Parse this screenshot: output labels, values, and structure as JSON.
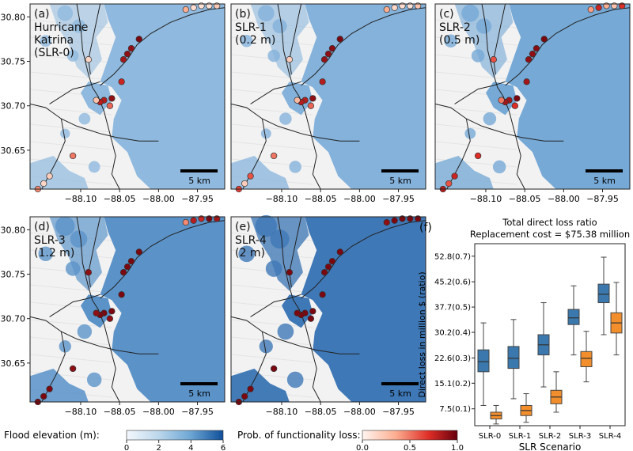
{
  "map_panels": [
    {
      "letter": "(a)",
      "title_lines": [
        "Hurricane",
        "Katrina",
        "(SLR-0)"
      ],
      "flood_color": "#8fb9de",
      "flood_scale": 1.0,
      "points_losses": [
        0.35,
        0.12,
        0.1,
        0.1,
        0.22,
        0.95,
        0.9,
        0.9,
        0.85,
        0.75,
        0.15,
        0.9,
        0.8,
        0.8,
        0.55,
        0.25,
        0.5,
        0.2,
        0.15,
        0.45
      ]
    },
    {
      "letter": "(b)",
      "title_lines": [
        "SLR-1",
        "(0.2 m)"
      ],
      "flood_color": "#84b2db",
      "flood_scale": 1.05,
      "points_losses": [
        0.35,
        0.15,
        0.12,
        0.1,
        0.25,
        0.95,
        0.92,
        0.9,
        0.88,
        0.8,
        0.2,
        0.9,
        0.8,
        0.8,
        0.55,
        0.3,
        0.5,
        0.6,
        0.2,
        0.65
      ]
    },
    {
      "letter": "(c)",
      "title_lines": [
        "SLR-2",
        "(0.5 m)"
      ],
      "flood_color": "#76a9d6",
      "flood_scale": 1.12,
      "points_losses": [
        0.4,
        0.75,
        0.35,
        0.25,
        0.7,
        0.95,
        0.92,
        0.9,
        0.9,
        0.85,
        0.6,
        0.95,
        0.85,
        0.85,
        0.7,
        0.5,
        0.7,
        0.75,
        0.6,
        0.8
      ]
    },
    {
      "letter": "(d)",
      "title_lines": [
        "SLR-3",
        "(1.2 m)"
      ],
      "flood_color": "#5b93c9",
      "flood_scale": 1.25,
      "points_losses": [
        0.45,
        0.8,
        0.75,
        0.95,
        0.85,
        0.95,
        0.95,
        0.95,
        0.95,
        0.95,
        0.9,
        0.95,
        0.95,
        0.95,
        0.9,
        0.9,
        0.9,
        0.95,
        0.95,
        0.95
      ]
    },
    {
      "letter": "(e)",
      "title_lines": [
        "SLR-4",
        "(2 m)"
      ],
      "flood_color": "#3f78b6",
      "flood_scale": 1.4,
      "points_losses": [
        0.9,
        0.95,
        0.95,
        0.95,
        0.95,
        0.95,
        0.95,
        0.95,
        0.95,
        0.95,
        0.95,
        0.95,
        0.95,
        0.95,
        0.95,
        0.95,
        0.95,
        0.95,
        0.95,
        0.95
      ]
    }
  ],
  "axes": {
    "x_ticks": [
      "−88.10",
      "−88.05",
      "−88.00",
      "−87.95"
    ],
    "y_ticks": [
      "30.80",
      "30.75",
      "30.70",
      "30.65"
    ]
  },
  "scalebar_label": "5 km",
  "colorbars": {
    "flood": {
      "label": "Flood elevation (m):",
      "ticks": [
        "0",
        "2",
        "4",
        "6"
      ]
    },
    "loss": {
      "label": "Prob. of functionality loss:",
      "ticks": [
        "0.0",
        "0.5",
        "1.0"
      ]
    }
  },
  "chart_data": {
    "type": "box",
    "panel_letter": "(f)",
    "title": "Total direct loss ratio",
    "subtitle": "Replacement cost = $75.38 million",
    "xlabel": "SLR Scenario",
    "ylabel": "Direct loss in million $ (ratio)",
    "categories": [
      "SLR-0",
      "SLR-1",
      "SLR-2",
      "SLR-3",
      "SLR-4"
    ],
    "y_ticks": [
      {
        "value": 7.5,
        "label": "7.5(0.1)"
      },
      {
        "value": 15.1,
        "label": "15.1(0.2)"
      },
      {
        "value": 22.6,
        "label": "22.6(0.3)"
      },
      {
        "value": 30.2,
        "label": "30.2(0.4)"
      },
      {
        "value": 37.7,
        "label": "37.7(0.5)"
      },
      {
        "value": 45.2,
        "label": "45.2(0.6)"
      },
      {
        "value": 52.8,
        "label": "52.8(0.7)"
      }
    ],
    "ylim": [
      2.5,
      56.5
    ],
    "series": [
      {
        "color": "#3a78ad",
        "boxes": [
          {
            "min": 8.5,
            "q1": 18.5,
            "median": 21.5,
            "q3": 25.0,
            "max": 33.0
          },
          {
            "min": 10.5,
            "q1": 19.5,
            "median": 22.5,
            "q3": 26.0,
            "max": 34.0
          },
          {
            "min": 14.0,
            "q1": 23.5,
            "median": 26.5,
            "q3": 29.5,
            "max": 39.0
          },
          {
            "min": 23.5,
            "q1": 32.5,
            "median": 34.5,
            "q3": 37.0,
            "max": 44.0
          },
          {
            "min": 29.5,
            "q1": 39.0,
            "median": 41.5,
            "q3": 44.5,
            "max": 52.5
          }
        ]
      },
      {
        "color": "#f28e2b",
        "boxes": [
          {
            "min": 3.0,
            "q1": 4.5,
            "median": 5.5,
            "q3": 6.5,
            "max": 8.5
          },
          {
            "min": 3.5,
            "q1": 5.5,
            "median": 7.0,
            "q3": 8.5,
            "max": 12.0
          },
          {
            "min": 6.5,
            "q1": 9.0,
            "median": 11.0,
            "q3": 13.0,
            "max": 18.5
          },
          {
            "min": 15.5,
            "q1": 20.0,
            "median": 22.5,
            "q3": 24.5,
            "max": 30.5
          },
          {
            "min": 23.5,
            "q1": 30.0,
            "median": 33.0,
            "q3": 36.0,
            "max": 45.0
          }
        ]
      }
    ]
  }
}
